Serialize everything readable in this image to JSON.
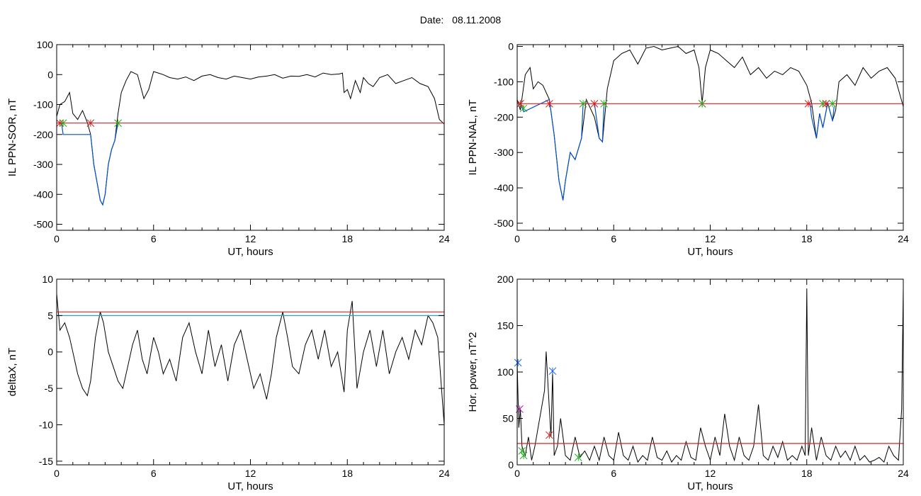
{
  "header": {
    "date_label": "Date:",
    "date_value": "08.11.2008"
  },
  "colors": {
    "trace": "#000000",
    "substorm": "#0050c8",
    "threshold": "#e02020",
    "onset": "#d02020",
    "end": "#20b020",
    "aux_blue": "#1060ff",
    "aux_purple": "#a020a0",
    "aux_line2": "#30a0c0"
  },
  "chart_data": [
    {
      "id": "sor",
      "type": "line",
      "title": "",
      "xlabel": "UT, hours",
      "ylabel": "IL PPN-SOR, nT",
      "xlim": [
        0,
        24
      ],
      "ylim": [
        -520,
        100
      ],
      "xticks": [
        0,
        6,
        12,
        18,
        24
      ],
      "yticks": [
        100,
        0,
        -100,
        -200,
        -300,
        -400,
        -500
      ],
      "grid": false,
      "series": [
        {
          "role": "trace",
          "x": [
            0,
            0.2,
            0.5,
            0.8,
            1.0,
            1.3,
            1.6,
            1.9,
            2.1,
            2.3,
            2.5,
            2.7,
            2.85,
            3.0,
            3.2,
            3.4,
            3.6,
            3.8,
            4.0,
            4.3,
            4.6,
            5.0,
            5.4,
            5.7,
            6.0,
            6.3,
            6.6,
            7.0,
            7.5,
            8.0,
            8.5,
            9.0,
            9.5,
            10.0,
            10.5,
            11.0,
            11.5,
            12.0,
            12.5,
            13.0,
            13.5,
            14.0,
            14.5,
            15.0,
            15.5,
            16.0,
            16.5,
            17.0,
            17.5,
            17.7,
            17.8,
            18.0,
            18.2,
            18.5,
            18.8,
            19.0,
            19.3,
            19.6,
            20.0,
            20.5,
            21.0,
            21.5,
            22.0,
            22.5,
            23.0,
            23.4,
            23.7,
            24.0
          ],
          "y": [
            -140,
            -100,
            -90,
            -60,
            -130,
            -150,
            -120,
            -160,
            -200,
            -300,
            -360,
            -420,
            -435,
            -400,
            -300,
            -250,
            -220,
            -130,
            -60,
            -20,
            10,
            0,
            -80,
            -50,
            10,
            5,
            0,
            -10,
            -15,
            -8,
            -20,
            -5,
            0,
            -10,
            -15,
            -5,
            -10,
            -15,
            -8,
            -5,
            0,
            -12,
            -5,
            -6,
            0,
            -8,
            5,
            0,
            2,
            5,
            -60,
            -50,
            -80,
            -20,
            -60,
            -10,
            -30,
            -40,
            -10,
            0,
            -30,
            -20,
            -10,
            -30,
            -40,
            -80,
            -150,
            -165
          ]
        },
        {
          "role": "substorm",
          "x": [
            0.3,
            0.4,
            2.1,
            2.3,
            2.5,
            2.7,
            2.85,
            3.0,
            3.2,
            3.4,
            3.6,
            3.8
          ],
          "y": [
            -160,
            -200,
            -200,
            -300,
            -360,
            -420,
            -435,
            -400,
            -300,
            -250,
            -220,
            -160
          ]
        },
        {
          "role": "threshold",
          "x": [
            0,
            24
          ],
          "y": [
            -162,
            -162
          ]
        }
      ],
      "markers": [
        {
          "kind": "onset",
          "x": 0.2,
          "y": -162
        },
        {
          "kind": "end",
          "x": 0.4,
          "y": -162
        },
        {
          "kind": "onset",
          "x": 2.1,
          "y": -162
        },
        {
          "kind": "end",
          "x": 3.8,
          "y": -162
        }
      ]
    },
    {
      "id": "nal",
      "type": "line",
      "title": "",
      "xlabel": "UT, hours",
      "ylabel": "IL PPN-NAL, nT",
      "xlim": [
        0,
        24
      ],
      "ylim": [
        -520,
        5
      ],
      "xticks": [
        0,
        6,
        12,
        18,
        24
      ],
      "yticks": [
        0,
        -100,
        -200,
        -300,
        -400,
        -500
      ],
      "grid": false,
      "series": [
        {
          "role": "trace",
          "x": [
            0,
            0.2,
            0.5,
            0.8,
            1.0,
            1.3,
            1.6,
            2.0,
            2.3,
            2.6,
            2.85,
            3.0,
            3.3,
            3.6,
            4.0,
            4.3,
            4.8,
            5.1,
            5.3,
            5.6,
            6.0,
            6.5,
            7.0,
            7.5,
            8.0,
            8.5,
            9.0,
            9.5,
            10.0,
            10.5,
            11.0,
            11.3,
            11.5,
            11.7,
            12.0,
            12.5,
            13.0,
            13.5,
            14.0,
            14.5,
            15.0,
            15.5,
            16.0,
            16.5,
            17.0,
            17.5,
            18.0,
            18.3,
            18.6,
            18.8,
            19.0,
            19.3,
            19.6,
            19.8,
            20.0,
            20.5,
            21.0,
            21.5,
            22.0,
            22.5,
            23.0,
            23.5,
            24.0
          ],
          "y": [
            -150,
            -180,
            -80,
            -60,
            -120,
            -100,
            -110,
            -150,
            -250,
            -380,
            -435,
            -380,
            -300,
            -320,
            -260,
            -150,
            -200,
            -260,
            -270,
            -120,
            -40,
            -20,
            -10,
            -50,
            -5,
            0,
            -10,
            -5,
            0,
            -20,
            -10,
            -60,
            -160,
            -60,
            -10,
            -20,
            -40,
            -60,
            -30,
            -80,
            -60,
            -90,
            -70,
            -80,
            -60,
            -70,
            -110,
            -160,
            -260,
            -190,
            -230,
            -160,
            -210,
            -180,
            -100,
            -80,
            -110,
            -60,
            -90,
            -70,
            -60,
            -90,
            -170
          ]
        },
        {
          "role": "substorm",
          "x": [
            0.2,
            0.4,
            2.0,
            2.3,
            2.6,
            2.85,
            3.0,
            3.3,
            3.6,
            4.0,
            4.1
          ],
          "y": [
            -160,
            -185,
            -150,
            -250,
            -380,
            -435,
            -380,
            -300,
            -320,
            -260,
            -160
          ]
        },
        {
          "role": "substorm",
          "x": [
            4.8,
            5.1,
            5.3,
            5.4
          ],
          "y": [
            -160,
            -260,
            -270,
            -160
          ]
        },
        {
          "role": "substorm",
          "x": [
            18.2,
            18.3,
            18.6,
            18.8,
            19.0,
            19.3,
            19.6,
            19.7
          ],
          "y": [
            -160,
            -200,
            -260,
            -190,
            -230,
            -160,
            -210,
            -170
          ]
        },
        {
          "role": "threshold",
          "x": [
            0,
            24
          ],
          "y": [
            -162,
            -162
          ]
        }
      ],
      "markers": [
        {
          "kind": "onset",
          "x": 0.2,
          "y": -162
        },
        {
          "kind": "end",
          "x": 0.4,
          "y": -175
        },
        {
          "kind": "onset",
          "x": 2.0,
          "y": -162
        },
        {
          "kind": "end",
          "x": 4.1,
          "y": -162
        },
        {
          "kind": "onset",
          "x": 4.8,
          "y": -162
        },
        {
          "kind": "end",
          "x": 5.4,
          "y": -162
        },
        {
          "kind": "onset",
          "x": 11.5,
          "y": -162
        },
        {
          "kind": "end",
          "x": 11.5,
          "y": -162
        },
        {
          "kind": "onset",
          "x": 18.1,
          "y": -162
        },
        {
          "kind": "end",
          "x": 19.0,
          "y": -162
        },
        {
          "kind": "onset",
          "x": 19.2,
          "y": -162
        },
        {
          "kind": "end",
          "x": 19.6,
          "y": -162
        }
      ]
    },
    {
      "id": "deltax",
      "type": "line",
      "title": "",
      "xlabel": "UT, hours",
      "ylabel": "deltaX, nT",
      "xlim": [
        0,
        24
      ],
      "ylim": [
        -15.5,
        10
      ],
      "xticks": [
        0,
        6,
        12,
        18,
        24
      ],
      "yticks": [
        10,
        5,
        0,
        -5,
        -10,
        -15
      ],
      "grid": false,
      "series": [
        {
          "role": "trace",
          "x": [
            0,
            0.2,
            0.5,
            0.8,
            1.0,
            1.3,
            1.6,
            1.9,
            2.1,
            2.4,
            2.7,
            2.9,
            3.2,
            3.5,
            3.8,
            4.1,
            4.4,
            4.7,
            5.0,
            5.3,
            5.6,
            6.0,
            6.3,
            6.6,
            7.0,
            7.4,
            7.8,
            8.2,
            8.6,
            9.0,
            9.4,
            9.8,
            10.2,
            10.6,
            11.0,
            11.4,
            11.8,
            12.2,
            12.6,
            13.0,
            13.3,
            13.6,
            14.0,
            14.3,
            14.6,
            15.0,
            15.4,
            15.8,
            16.2,
            16.6,
            17.0,
            17.4,
            17.8,
            18.0,
            18.3,
            18.6,
            19.0,
            19.4,
            19.8,
            20.2,
            20.6,
            21.0,
            21.4,
            21.8,
            22.2,
            22.6,
            23.0,
            23.3,
            23.6,
            24.0
          ],
          "y": [
            8,
            3,
            4,
            2,
            0,
            -3,
            -5,
            -6,
            -4,
            2,
            5.5,
            4,
            0,
            -2,
            -4,
            -5,
            -2,
            1,
            3,
            -1,
            -3,
            2,
            0,
            -3,
            -1,
            -4,
            2,
            4,
            0,
            -3,
            3,
            -2,
            1,
            -4,
            1,
            3,
            -1,
            -5,
            -3,
            -6.5,
            -3,
            2,
            5.5,
            2,
            -2,
            -3,
            1,
            3,
            -1,
            3,
            -2,
            0,
            -5.5,
            3,
            7,
            -5,
            0,
            3,
            -2,
            3,
            -3,
            0,
            2,
            -1,
            3,
            1,
            5,
            4,
            2,
            -10
          ]
        },
        {
          "role": "threshold",
          "x": [
            0,
            24
          ],
          "y": [
            5.5,
            5.5
          ]
        },
        {
          "role": "aux_line2",
          "x": [
            0,
            24
          ],
          "y": [
            5.0,
            5.0
          ]
        }
      ],
      "markers": []
    },
    {
      "id": "hpower",
      "type": "line",
      "title": "",
      "xlabel": "UT, hours",
      "ylabel": "Hor. power, nT^2",
      "xlim": [
        0,
        24
      ],
      "ylim": [
        0,
        200
      ],
      "xticks": [
        0,
        6,
        12,
        18,
        24
      ],
      "yticks": [
        200,
        150,
        100,
        50,
        0
      ],
      "grid": false,
      "series": [
        {
          "role": "trace",
          "x": [
            0,
            0.1,
            0.2,
            0.3,
            0.5,
            0.7,
            0.9,
            1.1,
            1.3,
            1.5,
            1.7,
            1.8,
            2.0,
            2.1,
            2.2,
            2.3,
            2.5,
            2.7,
            3.0,
            3.3,
            3.6,
            3.9,
            4.2,
            4.5,
            4.8,
            5.1,
            5.4,
            5.7,
            6.0,
            6.3,
            6.6,
            6.9,
            7.2,
            7.5,
            7.8,
            8.1,
            8.4,
            8.7,
            9.0,
            9.3,
            9.6,
            9.9,
            10.2,
            10.5,
            10.8,
            11.1,
            11.4,
            11.7,
            12.0,
            12.3,
            12.6,
            12.9,
            13.2,
            13.5,
            13.8,
            14.1,
            14.4,
            14.7,
            15.0,
            15.3,
            15.6,
            15.9,
            16.2,
            16.5,
            16.8,
            17.1,
            17.4,
            17.7,
            17.9,
            18.0,
            18.1,
            18.3,
            18.6,
            18.9,
            19.2,
            19.5,
            19.8,
            20.1,
            20.4,
            20.7,
            21.0,
            21.3,
            21.6,
            21.9,
            22.2,
            22.5,
            22.8,
            23.1,
            23.4,
            23.7,
            23.9,
            24.0
          ],
          "y": [
            110,
            40,
            60,
            20,
            10,
            30,
            5,
            20,
            40,
            60,
            80,
            122,
            60,
            30,
            100,
            10,
            20,
            50,
            10,
            5,
            30,
            8,
            15,
            5,
            20,
            5,
            30,
            10,
            5,
            35,
            10,
            5,
            20,
            3,
            10,
            5,
            30,
            8,
            5,
            15,
            3,
            10,
            5,
            25,
            8,
            5,
            40,
            20,
            5,
            30,
            10,
            55,
            20,
            5,
            30,
            10,
            5,
            20,
            65,
            10,
            5,
            20,
            8,
            25,
            5,
            10,
            5,
            20,
            10,
            190,
            10,
            40,
            5,
            30,
            10,
            5,
            20,
            8,
            15,
            5,
            20,
            5,
            10,
            3,
            5,
            8,
            3,
            20,
            10,
            5,
            60,
            190
          ]
        },
        {
          "role": "threshold",
          "x": [
            0,
            24
          ],
          "y": [
            23,
            23
          ]
        }
      ],
      "markers": [
        {
          "kind": "aux_blue",
          "x": 0.05,
          "y": 110
        },
        {
          "kind": "aux_purple",
          "x": 0.15,
          "y": 60
        },
        {
          "kind": "end",
          "x": 0.3,
          "y": 15
        },
        {
          "kind": "end",
          "x": 0.4,
          "y": 10
        },
        {
          "kind": "onset",
          "x": 2.0,
          "y": 32
        },
        {
          "kind": "aux_blue",
          "x": 2.2,
          "y": 101
        },
        {
          "kind": "end",
          "x": 3.8,
          "y": 8
        }
      ]
    }
  ]
}
